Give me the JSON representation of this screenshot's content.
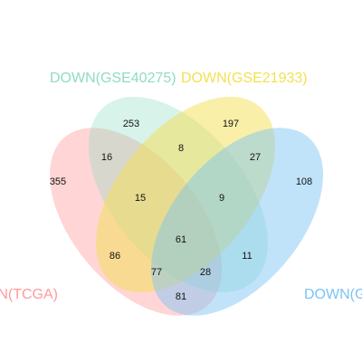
{
  "diagram": {
    "type": "venn-4",
    "sets": [
      {
        "id": "A",
        "label": "DOWN(TCGA)",
        "color": "#ff9a9a"
      },
      {
        "id": "B",
        "label": "DOWN(GSE40275)",
        "color": "#8fdcc0"
      },
      {
        "id": "C",
        "label": "DOWN(GSE21933)",
        "color": "#f3e052"
      },
      {
        "id": "D",
        "label": "DOWN(GSE",
        "color": "#7cc4f4"
      }
    ],
    "regions": {
      "A": "355",
      "B": "253",
      "C": "197",
      "D": "108",
      "AB": "16",
      "BC": "8",
      "CD": "27",
      "ABC": "15",
      "BCD": "9",
      "AC": "86",
      "BD": "11",
      "ABCD": "61",
      "ABD": "77",
      "ACD": "28",
      "AD": "81"
    }
  }
}
